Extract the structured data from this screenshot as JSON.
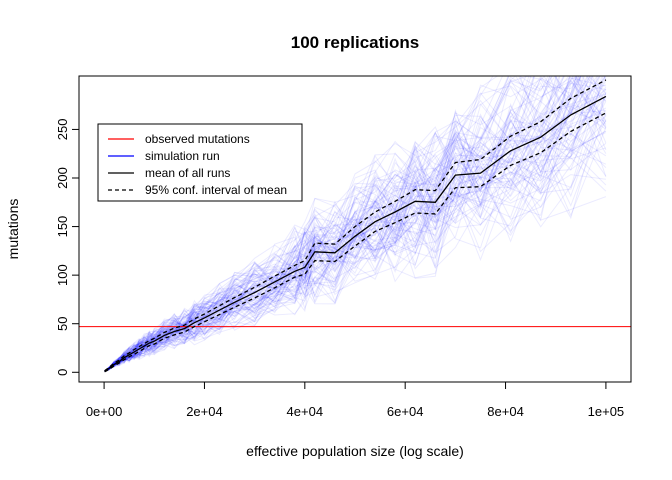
{
  "chart_data": {
    "type": "line",
    "title": "100 replications",
    "xlabel": "effective population size (log scale)",
    "ylabel": "mutations",
    "xlim": [
      -5000,
      105000
    ],
    "ylim": [
      -10,
      305
    ],
    "x_ticks": [
      0,
      20000,
      40000,
      60000,
      80000,
      100000
    ],
    "x_tick_labels": [
      "0e+00",
      "2e+04",
      "4e+04",
      "6e+04",
      "8e+04",
      "1e+05"
    ],
    "y_ticks": [
      0,
      50,
      100,
      150,
      200,
      250
    ],
    "y_tick_labels": [
      "0",
      "50",
      "100",
      "150",
      "200",
      "250"
    ],
    "grid": false,
    "legend_position": "top-left",
    "legend": [
      {
        "label": "observed mutations",
        "color": "#ff0000",
        "style": "solid"
      },
      {
        "label": "simulation run",
        "color": "#0000ff",
        "style": "solid"
      },
      {
        "label": "mean of all runs",
        "color": "#000000",
        "style": "solid"
      },
      {
        "label": "95% conf. interval of mean",
        "color": "#000000",
        "style": "dashed"
      }
    ],
    "observed_mutations": 47,
    "simulation_runs_count": 100,
    "simulation_color": "#0000ff",
    "x": [
      100,
      1000,
      2000,
      3000,
      4000,
      5000,
      6000,
      7000,
      8000,
      9000,
      10000,
      12000,
      14000,
      16000,
      18000,
      20000,
      23000,
      26000,
      30000,
      34000,
      38000,
      40000,
      42000,
      46000,
      50000,
      54000,
      58000,
      62000,
      66000,
      70000,
      75000,
      81000,
      87000,
      93000,
      100000
    ],
    "mean": [
      1,
      4,
      8,
      11,
      15,
      18,
      21,
      24,
      27,
      30,
      32,
      38,
      42,
      45,
      51,
      56,
      64,
      72,
      82,
      93,
      104,
      108,
      124,
      123,
      140,
      155,
      165,
      176,
      175,
      203,
      205,
      228,
      242,
      265,
      284
    ],
    "ci_upper": [
      1.5,
      5,
      9.5,
      12.5,
      17,
      20,
      23.5,
      26.5,
      29.5,
      32.5,
      35,
      41,
      45.5,
      48.5,
      55,
      60,
      68.5,
      77,
      87.5,
      99,
      110,
      115,
      133,
      132,
      150,
      165,
      176,
      188,
      187,
      216,
      219,
      243,
      258,
      282,
      301
    ],
    "ci_lower": [
      0.5,
      3,
      6.5,
      9.5,
      13,
      16,
      18.5,
      21.5,
      24.5,
      27.5,
      29,
      35,
      38.5,
      41.5,
      47,
      52,
      59.5,
      67,
      76.5,
      87,
      98,
      101,
      115,
      114,
      130,
      145,
      154,
      164,
      163,
      190,
      191,
      213,
      226,
      248,
      267
    ]
  }
}
